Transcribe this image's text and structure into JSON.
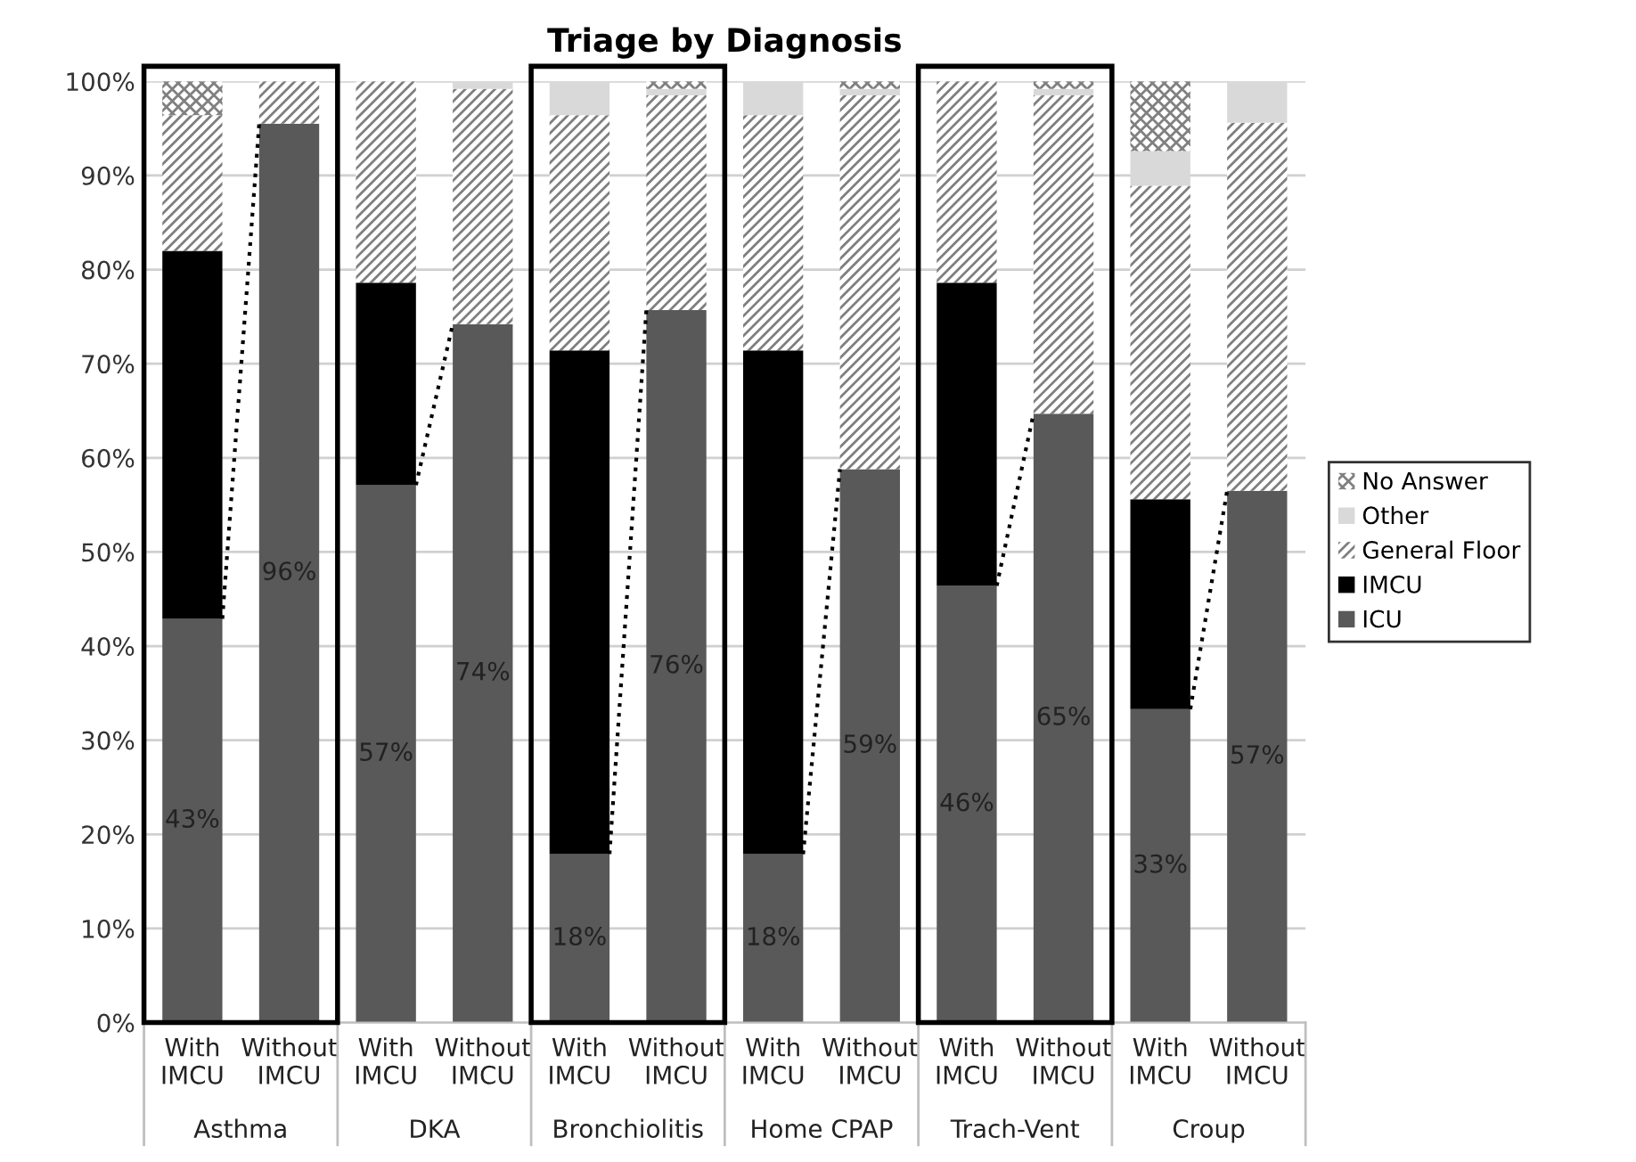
{
  "chart_data": {
    "type": "bar",
    "title": "Triage by Diagnosis",
    "stacked": true,
    "categories": [
      "With IMCU",
      "Without IMCU",
      "With IMCU",
      "Without IMCU",
      "With IMCU",
      "Without IMCU",
      "With IMCU",
      "Without IMCU",
      "With IMCU",
      "Without IMCU",
      "With IMCU",
      "Without IMCU"
    ],
    "annotations": [
      "Asthma",
      "DKA",
      "Bronchiolitis",
      "Home CPAP",
      "Trach-Vent",
      "Croup"
    ],
    "series": [
      {
        "name": "ICU",
        "color": "#595959",
        "values": [
          42.9,
          95.5,
          57.1,
          74.2,
          17.9,
          75.7,
          17.9,
          58.8,
          46.4,
          64.7,
          33.3,
          56.5
        ],
        "value_labels": [
          "43%",
          "96%",
          "57%",
          "74%",
          "18%",
          "76%",
          "18%",
          "59%",
          "46%",
          "65%",
          "33%",
          "57%"
        ]
      },
      {
        "name": "IMCU",
        "color": "#000000",
        "values": [
          39.1,
          0,
          21.5,
          0,
          53.5,
          0,
          53.5,
          0,
          32.2,
          0,
          22.3,
          0
        ]
      },
      {
        "name": "General Floor",
        "color": "#7f7f7f",
        "values": [
          14.4,
          4.5,
          21.4,
          25,
          25,
          22.8,
          25,
          39.7,
          21.4,
          33.8,
          33.3,
          39.1
        ]
      },
      {
        "name": "Other",
        "color": "#d9d9d9",
        "values": [
          0,
          0,
          0,
          0.8,
          3.6,
          0.7,
          3.6,
          0.7,
          0,
          0.7,
          3.7,
          4.4
        ]
      },
      {
        "name": "No Answer",
        "color": "#808080",
        "values": [
          3.6,
          0,
          0,
          0,
          0,
          0.8,
          0,
          0.8,
          0,
          0.8,
          7.4,
          0
        ]
      }
    ],
    "ylim": [
      0,
      100
    ],
    "yticks": [
      {
        "value": 0,
        "label": "0%"
      },
      {
        "value": 10,
        "label": "10%"
      },
      {
        "value": 20,
        "label": "20%"
      },
      {
        "value": 30,
        "label": "30%"
      },
      {
        "value": 40,
        "label": "40%"
      },
      {
        "value": 50,
        "label": "50%"
      },
      {
        "value": 60,
        "label": "60%"
      },
      {
        "value": 70,
        "label": "70%"
      },
      {
        "value": 80,
        "label": "80%"
      },
      {
        "value": 90,
        "label": "90%"
      },
      {
        "value": 100,
        "label": "100%"
      }
    ],
    "grid": "y",
    "legend": "right"
  }
}
